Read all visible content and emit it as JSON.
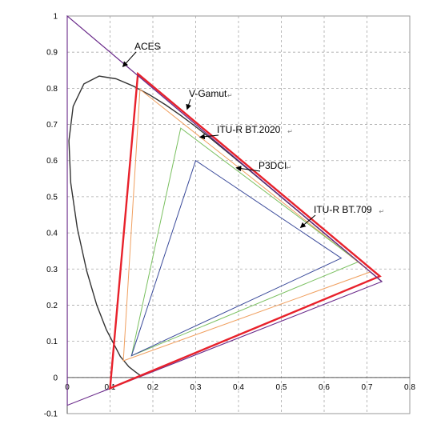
{
  "chart_data": {
    "type": "line",
    "title": "",
    "xlabel": "",
    "ylabel": "",
    "xlim": [
      0,
      0.8
    ],
    "ylim": [
      -0.1,
      1
    ],
    "x_ticks": [
      "0",
      "0.1",
      "0.2",
      "0.3",
      "0.4",
      "0.5",
      "0.6",
      "0.7",
      "0.8"
    ],
    "y_ticks": [
      "-0.1",
      "0",
      "0.1",
      "0.2",
      "0.3",
      "0.4",
      "0.5",
      "0.6",
      "0.7",
      "0.8",
      "0.9",
      "1"
    ],
    "grid": true,
    "spectral_locus": {
      "color": "#333333",
      "points": [
        [
          0.1741,
          0.005
        ],
        [
          0.1733,
          0.0048
        ],
        [
          0.1714,
          0.0051
        ],
        [
          0.1689,
          0.0069
        ],
        [
          0.1644,
          0.0109
        ],
        [
          0.1566,
          0.0177
        ],
        [
          0.144,
          0.0297
        ],
        [
          0.1241,
          0.0578
        ],
        [
          0.0913,
          0.1327
        ],
        [
          0.0687,
          0.2007
        ],
        [
          0.0454,
          0.295
        ],
        [
          0.0235,
          0.4127
        ],
        [
          0.0082,
          0.5384
        ],
        [
          0.0039,
          0.6548
        ],
        [
          0.0139,
          0.7502
        ],
        [
          0.0389,
          0.812
        ],
        [
          0.0743,
          0.8338
        ],
        [
          0.1142,
          0.8262
        ],
        [
          0.1547,
          0.8059
        ],
        [
          0.1929,
          0.7816
        ],
        [
          0.2296,
          0.7543
        ],
        [
          0.2658,
          0.7243
        ],
        [
          0.3016,
          0.6923
        ],
        [
          0.3373,
          0.6589
        ],
        [
          0.3731,
          0.6245
        ],
        [
          0.4087,
          0.5896
        ],
        [
          0.4441,
          0.5547
        ],
        [
          0.4788,
          0.5202
        ],
        [
          0.5125,
          0.4866
        ],
        [
          0.5448,
          0.4544
        ],
        [
          0.5752,
          0.4242
        ],
        [
          0.6029,
          0.3965
        ],
        [
          0.627,
          0.3725
        ],
        [
          0.6482,
          0.3514
        ],
        [
          0.6658,
          0.334
        ],
        [
          0.6801,
          0.3197
        ],
        [
          0.6915,
          0.3083
        ],
        [
          0.7006,
          0.2993
        ],
        [
          0.7079,
          0.292
        ],
        [
          0.714,
          0.2859
        ],
        [
          0.719,
          0.2809
        ],
        [
          0.723,
          0.277
        ],
        [
          0.726,
          0.274
        ],
        [
          0.7347,
          0.2653
        ]
      ]
    },
    "series": [
      {
        "name": "ACES",
        "color": "#6a2a8a",
        "closed": true,
        "points": [
          [
            0.7347,
            0.2653
          ],
          [
            0.0,
            1.0
          ],
          [
            0.0001,
            -0.077
          ]
        ]
      },
      {
        "name": "V-Gamut",
        "color": "#e8212b",
        "closed": true,
        "points": [
          [
            0.73,
            0.28
          ],
          [
            0.165,
            0.84
          ],
          [
            0.1,
            -0.03
          ]
        ]
      },
      {
        "name": "ITU-R BT.2020",
        "color": "#f0a060",
        "closed": true,
        "points": [
          [
            0.708,
            0.292
          ],
          [
            0.17,
            0.797
          ],
          [
            0.131,
            0.046
          ]
        ]
      },
      {
        "name": "P3DCI",
        "color": "#7ac060",
        "closed": true,
        "points": [
          [
            0.68,
            0.32
          ],
          [
            0.265,
            0.69
          ],
          [
            0.15,
            0.06
          ]
        ]
      },
      {
        "name": "ITU-R BT.709",
        "color": "#3a4a9a",
        "closed": true,
        "points": [
          [
            0.64,
            0.33
          ],
          [
            0.3,
            0.6
          ],
          [
            0.15,
            0.06
          ]
        ]
      }
    ],
    "annotations": [
      {
        "label": "ACES",
        "arrow_to": [
          0.13,
          0.86
        ]
      },
      {
        "label": "V-Gamut",
        "arrow_to": [
          0.28,
          0.742
        ]
      },
      {
        "label": "ITU-R BT.2020",
        "arrow_to": [
          0.31,
          0.665
        ]
      },
      {
        "label": "P3DCI",
        "arrow_to": [
          0.395,
          0.58
        ]
      },
      {
        "label": "ITU-R BT.709",
        "arrow_to": [
          0.545,
          0.415
        ]
      }
    ]
  }
}
